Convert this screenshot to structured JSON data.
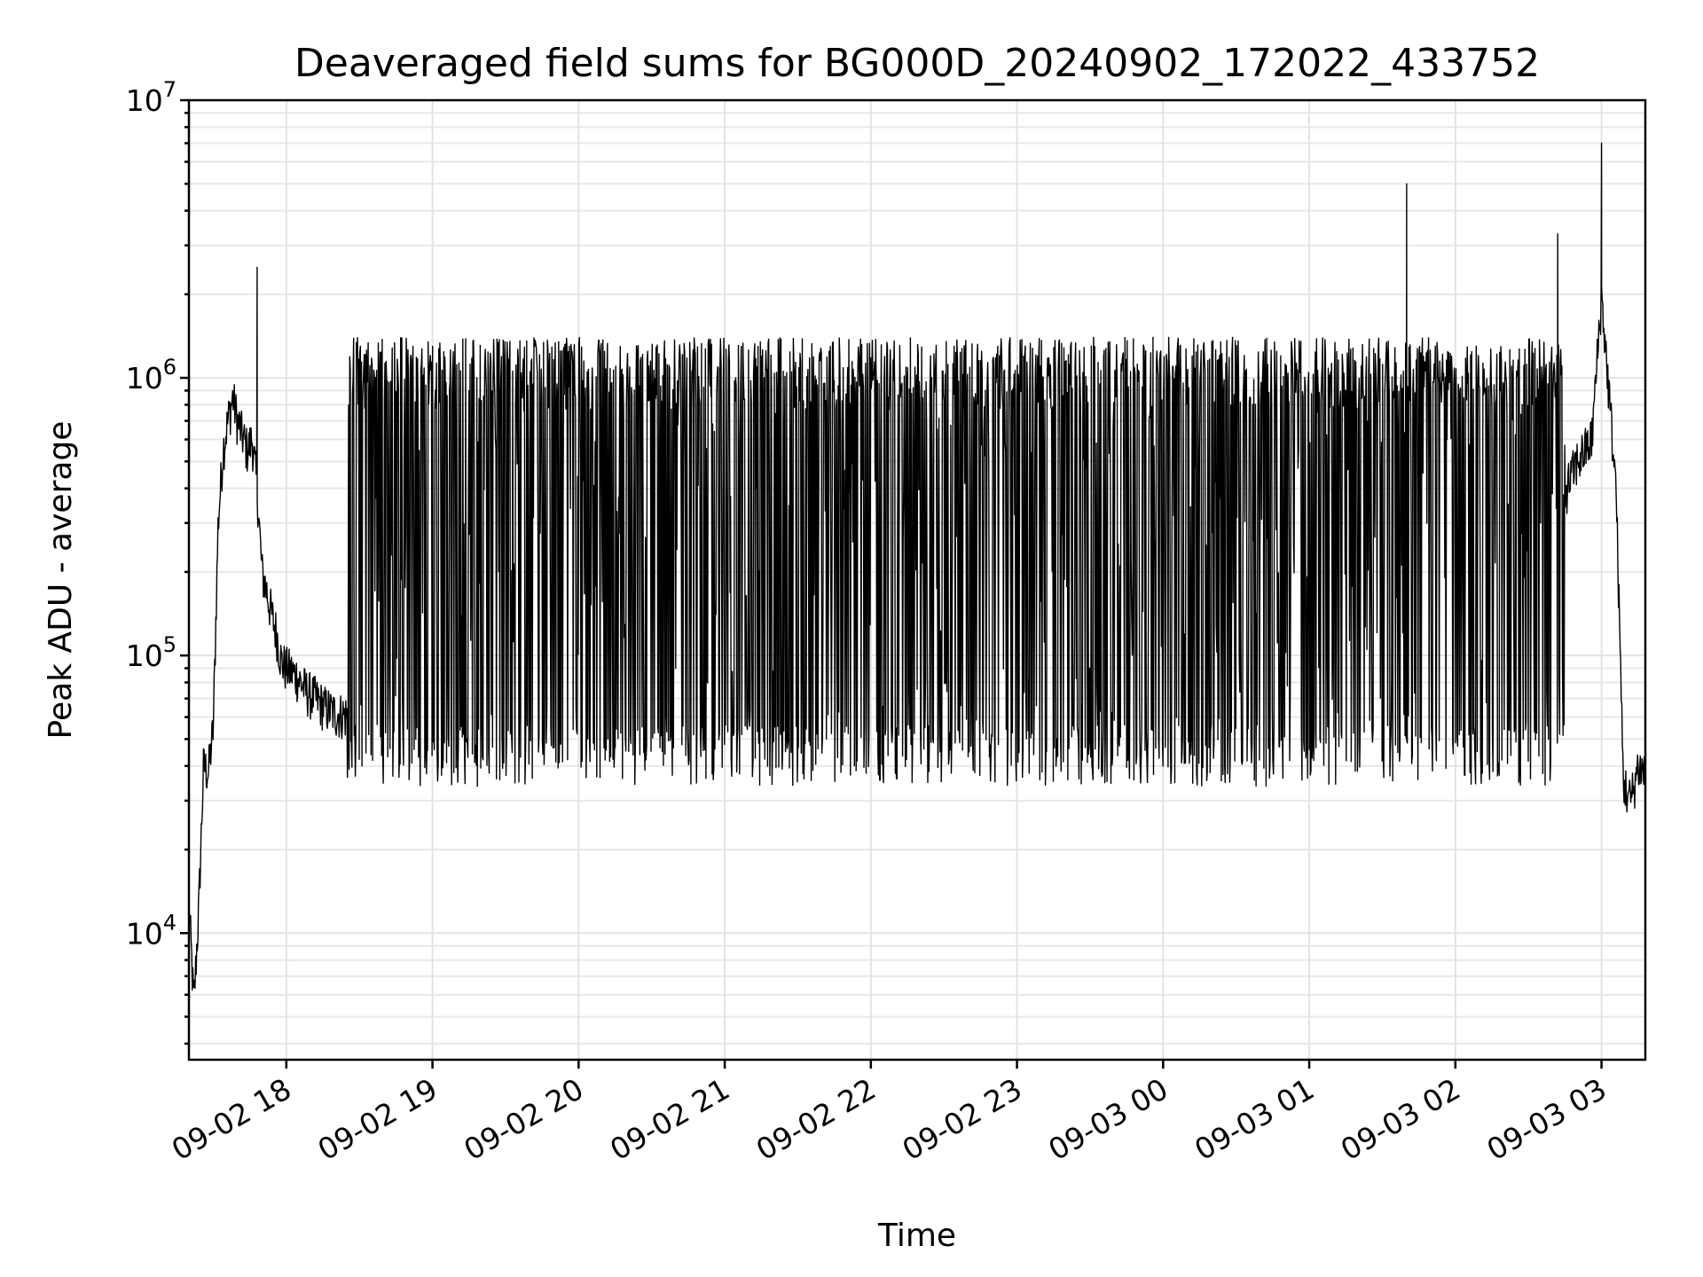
{
  "chart_data": {
    "type": "line",
    "title": "Deaveraged field sums for BG000D_20240902_172022_433752",
    "xlabel": "Time",
    "ylabel": "Peak ADU - average",
    "yscale": "log",
    "ylim": [
      3500,
      10000000
    ],
    "y_tick_labels": [
      {
        "value": 10000,
        "base": "10",
        "exp": "4"
      },
      {
        "value": 100000,
        "base": "10",
        "exp": "5"
      },
      {
        "value": 1000000,
        "base": "10",
        "exp": "6"
      },
      {
        "value": 10000000,
        "base": "10",
        "exp": "7"
      }
    ],
    "xlim": [
      "2024-09-02 17:20",
      "2024-09-03 03:18"
    ],
    "x_ticks": [
      {
        "value": "2024-09-02 18:00",
        "label": "09-02 18"
      },
      {
        "value": "2024-09-02 19:00",
        "label": "09-02 19"
      },
      {
        "value": "2024-09-02 20:00",
        "label": "09-02 20"
      },
      {
        "value": "2024-09-02 21:00",
        "label": "09-02 21"
      },
      {
        "value": "2024-09-02 22:00",
        "label": "09-02 22"
      },
      {
        "value": "2024-09-02 23:00",
        "label": "09-02 23"
      },
      {
        "value": "2024-09-03 00:00",
        "label": "09-03 00"
      },
      {
        "value": "2024-09-03 01:00",
        "label": "09-03 01"
      },
      {
        "value": "2024-09-03 02:00",
        "label": "09-03 02"
      },
      {
        "value": "2024-09-03 03:00",
        "label": "09-03 03"
      }
    ],
    "grid": true,
    "legend": "none",
    "line_color": "#000000",
    "series": [
      {
        "x": [
          "2024-09-02 17:20",
          "2024-09-02 17:22",
          "2024-09-02 17:24",
          "2024-09-02 17:26",
          "2024-09-02 17:28",
          "2024-09-02 17:30",
          "2024-09-02 17:32",
          "2024-09-02 17:34",
          "2024-09-02 17:36",
          "2024-09-02 17:38",
          "2024-09-02 17:40",
          "2024-09-02 17:42",
          "2024-09-02 17:44",
          "2024-09-02 17:46",
          "2024-09-02 17:48",
          "2024-09-02 17:50",
          "2024-09-02 17:52",
          "2024-09-02 17:54",
          "2024-09-02 17:56",
          "2024-09-02 17:58",
          "2024-09-02 18:00",
          "2024-09-02 18:04",
          "2024-09-02 18:08",
          "2024-09-02 18:12",
          "2024-09-02 18:16",
          "2024-09-02 18:20",
          "2024-09-02 18:30",
          "2024-09-02 18:40",
          "2024-09-02 18:50",
          "2024-09-02 19:00",
          "2024-09-02 19:15",
          "2024-09-02 19:30",
          "2024-09-02 19:45",
          "2024-09-02 20:00",
          "2024-09-02 20:30",
          "2024-09-02 21:00",
          "2024-09-02 21:30",
          "2024-09-02 22:00",
          "2024-09-02 22:30",
          "2024-09-02 23:00",
          "2024-09-02 23:30",
          "2024-09-03 00:00",
          "2024-09-03 00:30",
          "2024-09-03 01:00",
          "2024-09-03 01:30",
          "2024-09-03 01:45",
          "2024-09-03 02:00",
          "2024-09-03 02:10",
          "2024-09-03 02:20",
          "2024-09-03 02:30",
          "2024-09-03 02:40",
          "2024-09-03 02:50",
          "2024-09-03 02:56",
          "2024-09-03 03:00",
          "2024-09-03 03:03",
          "2024-09-03 03:06",
          "2024-09-03 03:09",
          "2024-09-03 03:12",
          "2024-09-03 03:15",
          "2024-09-03 03:18"
        ],
        "y": [
          13000,
          5500,
          12000,
          40000,
          38000,
          55000,
          300000,
          550000,
          700000,
          850000,
          700000,
          620000,
          550000,
          600000,
          400000,
          200000,
          170000,
          140000,
          120000,
          95000,
          90000,
          85000,
          75000,
          70000,
          65000,
          62000,
          60000,
          58000,
          60000,
          65000,
          70000,
          80000,
          90000,
          120000,
          150000,
          180000,
          200000,
          190000,
          180000,
          160000,
          140000,
          110000,
          90000,
          80000,
          75000,
          70000,
          68000,
          70000,
          90000,
          150000,
          300000,
          500000,
          600000,
          2000000,
          900000,
          400000,
          35000,
          30000,
          40000,
          38000
        ]
      }
    ],
    "spikes": [
      {
        "x": "2024-09-02 17:48",
        "y": 2500000
      },
      {
        "x": "2024-09-03 01:40",
        "y": 5000000
      },
      {
        "x": "2024-09-03 02:42",
        "y": 3300000
      },
      {
        "x": "2024-09-03 03:00",
        "y": 7000000
      }
    ],
    "oscillation": {
      "start": "2024-09-02 18:25",
      "end": "2024-09-03 02:45",
      "low": 45000,
      "high": 1400000
    }
  }
}
